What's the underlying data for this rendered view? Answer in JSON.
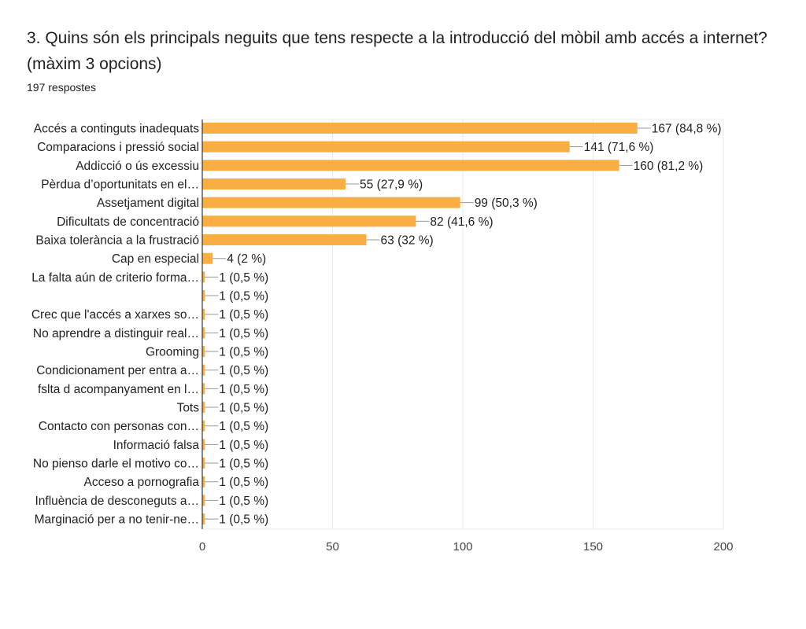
{
  "header": {
    "title": "3. Quins són els principals neguits que tens respecte a la introducció del mòbil amb accés a internet? (màxim 3 opcions)",
    "responses": "197 respostes"
  },
  "colors": {
    "bar": "#f8ae42",
    "grid": "#e8e8e8",
    "axis": "#333333",
    "text": "#222222",
    "leader": "#999999"
  },
  "chart_data": {
    "type": "bar",
    "orientation": "horizontal",
    "title": "3. Quins són els principals neguits que tens respecte a la introducció del mòbil amb accés a internet? (màxim 3 opcions)",
    "xlim": [
      0,
      200
    ],
    "xticks": [
      0,
      50,
      100,
      150,
      200
    ],
    "grid": true,
    "categories": [
      "Accés a continguts inadequats",
      "Comparacions i pressió social",
      "Addicció o ús excessiu",
      "Pèrdua d’oportunitats en el…",
      "Assetjament digital",
      "Dificultats de concentració",
      "Baixa tolerància a la frustració",
      "Cap en especial",
      "La falta aún de criterio forma…",
      "",
      "Crec que l'accés a xarxes so…",
      "No aprendre a distinguir real…",
      "Grooming",
      "Condicionament per entra a…",
      "fslta d acompanyament en l…",
      "Tots",
      "Contacto con personas con…",
      "Informació falsa",
      "No pienso darle el motivo co…",
      "Acceso a pornografia",
      "Influència de desconeguts a…",
      "Marginació per a no tenir-ne…"
    ],
    "values": [
      167,
      141,
      160,
      55,
      99,
      82,
      63,
      4,
      1,
      1,
      1,
      1,
      1,
      1,
      1,
      1,
      1,
      1,
      1,
      1,
      1,
      1
    ],
    "data_labels": [
      "167 (84,8 %)",
      "141 (71,6 %)",
      "160 (81,2 %)",
      "55 (27,9 %)",
      "99 (50,3 %)",
      "82 (41,6 %)",
      "63 (32 %)",
      "4 (2 %)",
      "1 (0,5 %)",
      "1 (0,5 %)",
      "1 (0,5 %)",
      "1 (0,5 %)",
      "1 (0,5 %)",
      "1 (0,5 %)",
      "1 (0,5 %)",
      "1 (0,5 %)",
      "1 (0,5 %)",
      "1 (0,5 %)",
      "1 (0,5 %)",
      "1 (0,5 %)",
      "1 (0,5 %)",
      "1 (0,5 %)"
    ]
  }
}
